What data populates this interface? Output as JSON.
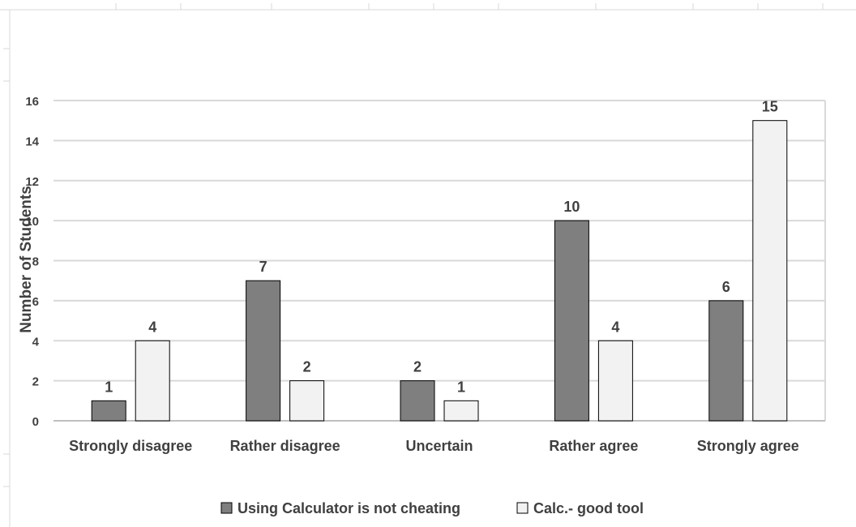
{
  "chart_data": {
    "type": "bar",
    "categories": [
      "Strongly disagree",
      "Rather disagree",
      "Uncertain",
      "Rather agree",
      "Strongly agree"
    ],
    "series": [
      {
        "name": "Using Calculator is not cheating",
        "values": [
          1,
          7,
          2,
          10,
          6
        ],
        "color": "#7f7f7f"
      },
      {
        "name": "Calc.- good tool",
        "values": [
          4,
          2,
          1,
          4,
          15
        ],
        "color": "#f2f2f2"
      }
    ],
    "title": "",
    "xlabel": "",
    "ylabel": "Number of Students",
    "ylim": [
      0,
      16
    ],
    "yticks": [
      0,
      2,
      4,
      6,
      8,
      10,
      12,
      14,
      16
    ],
    "grid": true,
    "legend_position": "bottom",
    "data_labels": true
  }
}
